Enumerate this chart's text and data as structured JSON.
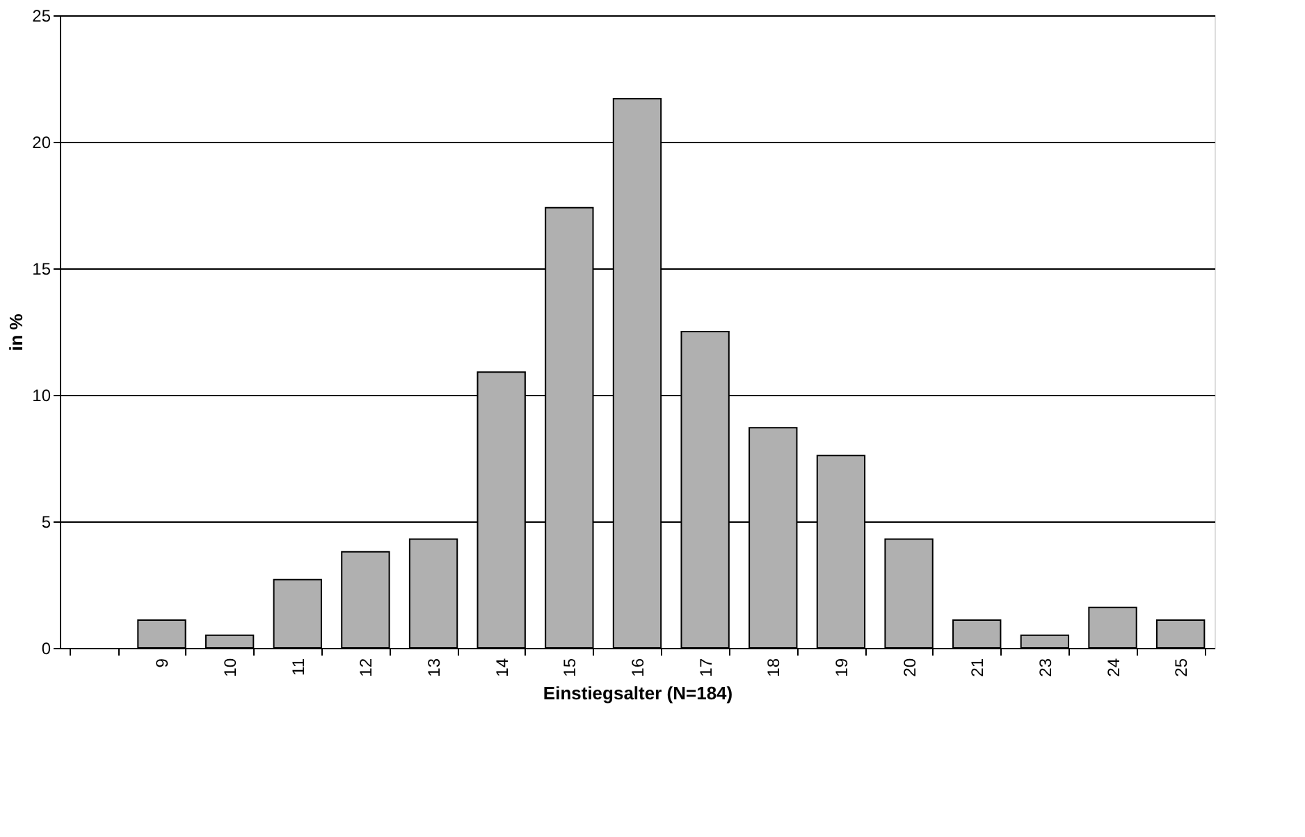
{
  "chart_data": {
    "type": "bar",
    "xlabel": "Einstiegsalter (N=184)",
    "ylabel": "in %",
    "categories": [
      null,
      "9",
      "10",
      "11",
      "12",
      "13",
      "14",
      "15",
      "16",
      "17",
      "18",
      "19",
      "20",
      "21",
      "23",
      "24",
      "25"
    ],
    "values": [
      null,
      1.1,
      0.5,
      2.7,
      3.8,
      4.3,
      10.9,
      17.4,
      21.7,
      12.5,
      8.7,
      7.6,
      4.3,
      1.1,
      0.5,
      1.6,
      1.1
    ],
    "color": "#b0b0b0",
    "ylim": [
      0,
      25
    ],
    "yticks": [
      0,
      5,
      10,
      15,
      20,
      25
    ],
    "grid": "y"
  }
}
